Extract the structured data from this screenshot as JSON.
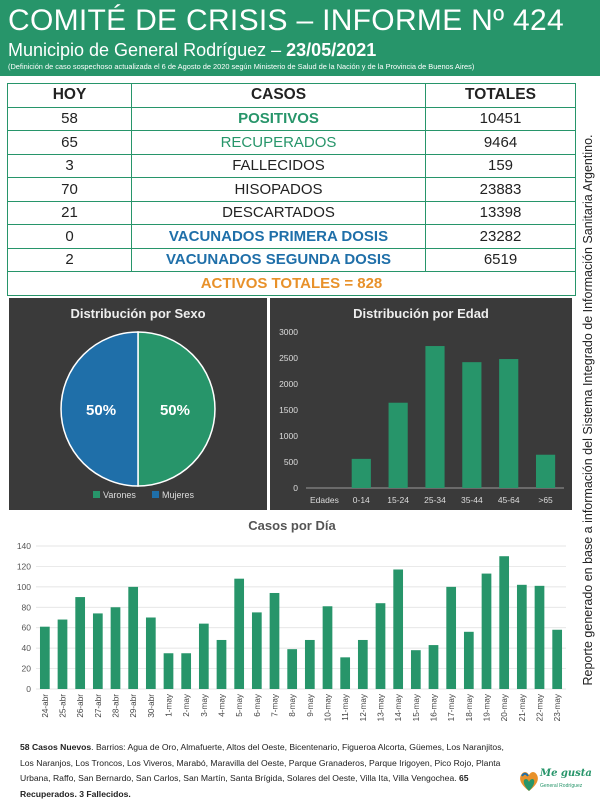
{
  "header": {
    "title": "COMITÉ DE CRISIS – INFORME Nº 424",
    "subtitle_prefix": "Municipio de General Rodríguez – ",
    "subtitle_date": "23/05/2021",
    "note": "(Definición de caso sospechoso actualizada el 6 de Agosto de 2020 según Ministerio de Salud de la Nación y de la Provincia de Buenos Aires)"
  },
  "side_note": "Reporte generado en base a información del Sistema Integrado de Información Sanitaria Argentino.",
  "table": {
    "headers": [
      "HOY",
      "CASOS",
      "TOTALES"
    ],
    "rows": [
      {
        "hoy": "58",
        "casos": "POSITIVOS",
        "totales": "10451"
      },
      {
        "hoy": "65",
        "casos": "RECUPERADOS",
        "totales": "9464"
      },
      {
        "hoy": "3",
        "casos": "FALLECIDOS",
        "totales": "159"
      },
      {
        "hoy": "70",
        "casos": "HISOPADOS",
        "totales": "23883"
      },
      {
        "hoy": "21",
        "casos": "DESCARTADOS",
        "totales": "13398"
      },
      {
        "hoy": "0",
        "casos": "VACUNADOS PRIMERA DOSIS",
        "totales": "23282"
      },
      {
        "hoy": "2",
        "casos": "VACUNADOS SEGUNDA DOSIS",
        "totales": "6519"
      }
    ],
    "activos": "ACTIVOS TOTALES = 828"
  },
  "colors": {
    "green": "#27956a",
    "blue": "#1f6fa9",
    "orange": "#e8912a",
    "panel_bg": "#3a3a3a"
  },
  "chart_data": [
    {
      "type": "pie",
      "title": "Distribución por Sexo",
      "labels": [
        "Varones",
        "Mujeres"
      ],
      "values": [
        50,
        50
      ],
      "data_labels": [
        "50%",
        "50%"
      ],
      "colors": [
        "#27956a",
        "#1f6fa9"
      ],
      "legend": "bottom"
    },
    {
      "type": "bar",
      "title": "Distribución por Edad",
      "xlabel": "Edades",
      "categories": [
        "0-14",
        "15-24",
        "25-34",
        "35-44",
        "45-64",
        ">65"
      ],
      "values": [
        560,
        1640,
        2730,
        2420,
        2480,
        640
      ],
      "ylim": [
        0,
        3000
      ],
      "yticks": [
        0,
        500,
        1000,
        1500,
        2000,
        2500,
        3000
      ],
      "grid": false
    },
    {
      "type": "bar",
      "title": "Casos por Día",
      "categories": [
        "24-abr",
        "25-abr",
        "26-abr",
        "27-abr",
        "28-abr",
        "29-abr",
        "30-abr",
        "1-may",
        "2-may",
        "3-may",
        "4-may",
        "5-may",
        "6-may",
        "7-may",
        "8-may",
        "9-may",
        "10-may",
        "11-may",
        "12-may",
        "13-may",
        "14-may",
        "15-may",
        "16-may",
        "17-may",
        "18-may",
        "19-may",
        "20-may",
        "21-may",
        "22-may",
        "23-may"
      ],
      "values": [
        61,
        68,
        90,
        74,
        80,
        100,
        70,
        35,
        35,
        64,
        48,
        108,
        75,
        94,
        39,
        48,
        81,
        31,
        48,
        84,
        117,
        38,
        43,
        100,
        56,
        113,
        130,
        102,
        101,
        58
      ],
      "ylim": [
        0,
        140
      ],
      "yticks": [
        0,
        20,
        40,
        60,
        80,
        100,
        120,
        140
      ],
      "grid": true
    }
  ],
  "footer": {
    "lead": "58 Casos Nuevos",
    "body": ". Barrios: Agua de Oro, Almafuerte, Altos del Oeste, Bicentenario, Figueroa Alcorta, Güemes, Los Naranjitos, Los Naranjos, Los Troncos, Los Viveros, Marabó, Maravilla del Oeste, Parque Granaderos, Parque Irigoyen, Pico Rojo, Planta Urbana, Raffo, San Bernardo, San Carlos, San Martín, Santa Brígida, Solares del Oeste, Villa Ita, Villa Vengochea. ",
    "tail": "65 Recuperados. 3 Fallecidos."
  },
  "logo": {
    "text": "Me gusta",
    "sub": "General Rodríguez"
  }
}
